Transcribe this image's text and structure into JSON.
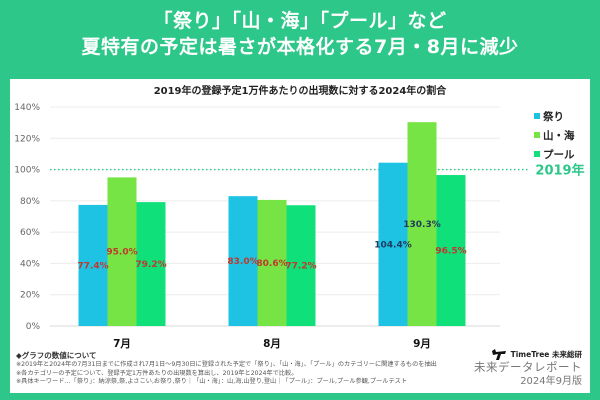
{
  "headline": {
    "line1": "「祭り」「山・海」「プール」など",
    "line2": "夏特有の予定は暑さが本格化する7月・8月に減少"
  },
  "colors": {
    "background": "#2ec78a",
    "panel": "#ffffff",
    "reference_line": "#2ec78a",
    "label_red": "#c0392b",
    "label_dark": "#1f3a5f"
  },
  "chart_data": {
    "type": "bar",
    "title": "2019年の登録予定1万件あたりの出現数に対する2024年の割合",
    "xlabel": "",
    "ylabel": "",
    "categories": [
      "7月",
      "8月",
      "9月"
    ],
    "series": [
      {
        "name": "祭り",
        "color": "#1ec3e3",
        "values": [
          77.4,
          83.0,
          104.4
        ],
        "labels": [
          "77.4%",
          "83.0%",
          "104.4%"
        ]
      },
      {
        "name": "山・海",
        "color": "#76e444",
        "values": [
          95.0,
          80.6,
          130.3
        ],
        "labels": [
          "95.0%",
          "80.6%",
          "130.3%"
        ]
      },
      {
        "name": "プール",
        "color": "#10e07a",
        "values": [
          79.2,
          77.2,
          96.5
        ],
        "labels": [
          "79.2%",
          "77.2%",
          "96.5%"
        ]
      }
    ],
    "label_colors": [
      [
        "#c0392b",
        "#c0392b",
        "#1f3a5f"
      ],
      [
        "#c0392b",
        "#c0392b",
        "#1f3a5f"
      ],
      [
        "#c0392b",
        "#c0392b",
        "#c0392b"
      ]
    ],
    "ylim": [
      0,
      140
    ],
    "yticks": [
      0,
      20,
      40,
      60,
      80,
      100,
      120,
      140
    ],
    "ytick_labels": [
      "0%",
      "20%",
      "40%",
      "60%",
      "80%",
      "100%",
      "120%",
      "140%"
    ],
    "grid": true,
    "legend_position": "right",
    "reference_line": {
      "value": 100,
      "label": "2019年",
      "style": "dotted"
    }
  },
  "notes": {
    "heading": "◆グラフの数値について",
    "lines": [
      "※2019年と2024年の7月31日までに作成され7月1日〜9月30日に登録された予定で「祭り」、「山・海」、「プール」のカテゴリーに関連するものを抽出",
      "※各カテゴリーの予定について、登録予定1万件あたりの出現数を算出し、2019年と2024年で比較。",
      "※具体キーワード…「祭り」：納涼祭,祭,よさこい,お祭り,祭り｜「山・海」：山,海,山登り,登山｜「プール」：プール,プール参観,プールテスト"
    ]
  },
  "brand": {
    "name": "TimeTree 未来総研",
    "report": "未来データレポート",
    "date": "2024年9月版"
  }
}
